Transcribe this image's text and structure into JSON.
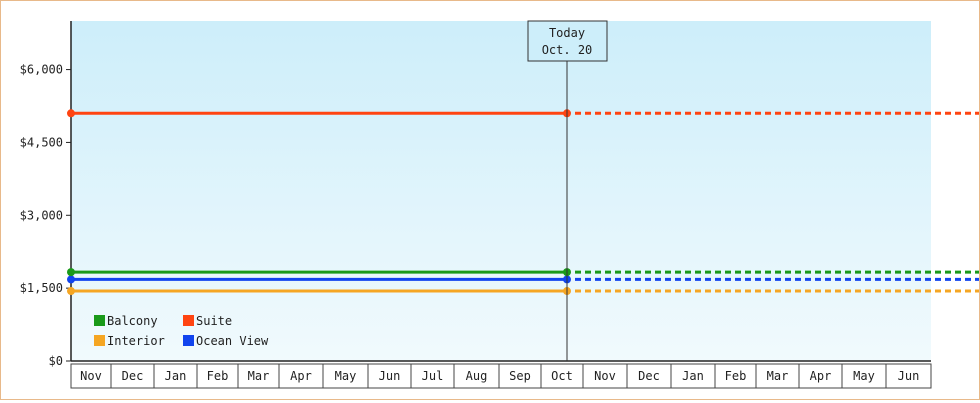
{
  "chart_data": {
    "type": "line",
    "ylim": [
      0,
      7000
    ],
    "yticks": [
      "$0",
      "$1,500",
      "$3,000",
      "$4,500",
      "$6,000"
    ],
    "ytick_values": [
      0,
      1500,
      3000,
      4500,
      6000
    ],
    "months": [
      "Nov",
      "Dec",
      "Jan",
      "Feb",
      "Mar",
      "Apr",
      "May",
      "Jun",
      "Jul",
      "Aug",
      "Sep",
      "Oct",
      "Nov",
      "Dec",
      "Jan",
      "Feb",
      "Mar",
      "Apr",
      "May",
      "Jun"
    ],
    "today": {
      "label": "Today",
      "date": "Oct. 20"
    },
    "series": [
      {
        "name": "Balcony",
        "color": "#1a9a1a",
        "value": 1830
      },
      {
        "name": "Suite",
        "color": "#ff4411",
        "value": 5100
      },
      {
        "name": "Interior",
        "color": "#f5a623",
        "value": 1440
      },
      {
        "name": "Ocean View",
        "color": "#1144ee",
        "value": 1680
      }
    ],
    "legend_position": "bottom-left",
    "grid": false
  }
}
